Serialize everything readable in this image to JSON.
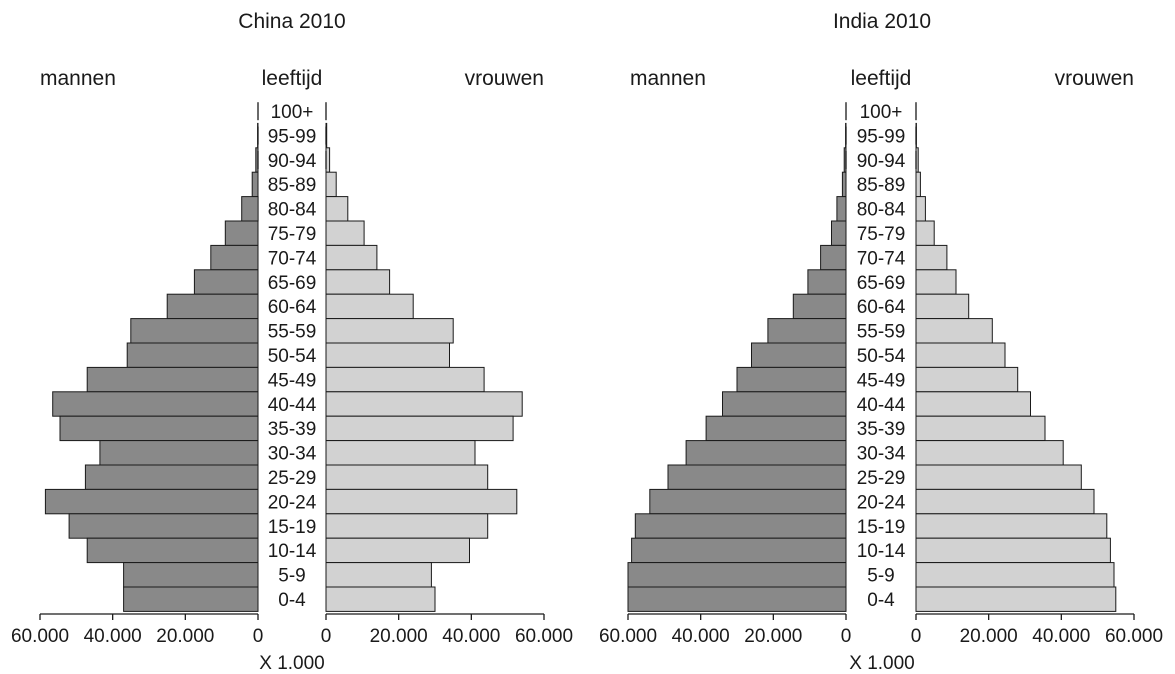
{
  "colors": {
    "male": "#898989",
    "female": "#d2d2d2",
    "stroke": "#1a1a1a"
  },
  "age_groups": [
    "100+",
    "95-99",
    "90-94",
    "85-89",
    "80-84",
    "75-79",
    "70-74",
    "65-69",
    "60-64",
    "55-59",
    "50-54",
    "45-49",
    "40-44",
    "35-39",
    "30-34",
    "25-29",
    "20-24",
    "15-19",
    "10-14",
    "5-9",
    "0-4"
  ],
  "labels": {
    "men": "mannen",
    "age": "leeftijd",
    "women": "vrouwen",
    "unit": "X 1.000"
  },
  "chart_data": [
    {
      "type": "bar",
      "title": "China 2010",
      "xlabel": "X 1.000",
      "xlim": [
        0,
        60000
      ],
      "xticks_men": [
        "60.000",
        "40.000",
        "20.000",
        "0"
      ],
      "xticks_women": [
        "0",
        "20.000",
        "40.000",
        "60.000"
      ],
      "categories": [
        "100+",
        "95-99",
        "90-94",
        "85-89",
        "80-84",
        "75-79",
        "70-74",
        "65-69",
        "60-64",
        "55-59",
        "50-54",
        "45-49",
        "40-44",
        "35-39",
        "30-34",
        "25-29",
        "20-24",
        "15-19",
        "10-14",
        "5-9",
        "0-4"
      ],
      "series": [
        {
          "name": "mannen",
          "values": [
            0,
            100,
            600,
            1600,
            4500,
            9000,
            13000,
            17500,
            25000,
            35000,
            36000,
            47000,
            56500,
            54500,
            43500,
            47500,
            58500,
            52000,
            47000,
            37000,
            37000
          ]
        },
        {
          "name": "vrouwen",
          "values": [
            0,
            200,
            1000,
            2800,
            6000,
            10500,
            14000,
            17500,
            24000,
            35000,
            34000,
            43500,
            54000,
            51500,
            41000,
            44500,
            52500,
            44500,
            39500,
            29000,
            30000
          ]
        }
      ]
    },
    {
      "type": "bar",
      "title": "India 2010",
      "xlabel": "X 1.000",
      "xlim": [
        0,
        60000
      ],
      "xticks_men": [
        "60.000",
        "40.000",
        "20.000",
        "0"
      ],
      "xticks_women": [
        "0",
        "20.000",
        "40.000",
        "60.000"
      ],
      "categories": [
        "100+",
        "95-99",
        "90-94",
        "85-89",
        "80-84",
        "75-79",
        "70-74",
        "65-69",
        "60-64",
        "55-59",
        "50-54",
        "45-49",
        "40-44",
        "35-39",
        "30-34",
        "25-29",
        "20-24",
        "15-19",
        "10-14",
        "5-9",
        "0-4"
      ],
      "series": [
        {
          "name": "mannen",
          "values": [
            0,
            100,
            500,
            1000,
            2500,
            4000,
            7000,
            10500,
            14500,
            21500,
            26000,
            30000,
            34000,
            38500,
            44000,
            49000,
            54000,
            58000,
            59000,
            60000,
            60000
          ]
        },
        {
          "name": "vrouwen",
          "values": [
            0,
            100,
            600,
            1200,
            2600,
            5000,
            8500,
            11000,
            14500,
            21000,
            24500,
            28000,
            31500,
            35500,
            40500,
            45500,
            49000,
            52500,
            53500,
            54500,
            55000
          ]
        }
      ]
    }
  ]
}
